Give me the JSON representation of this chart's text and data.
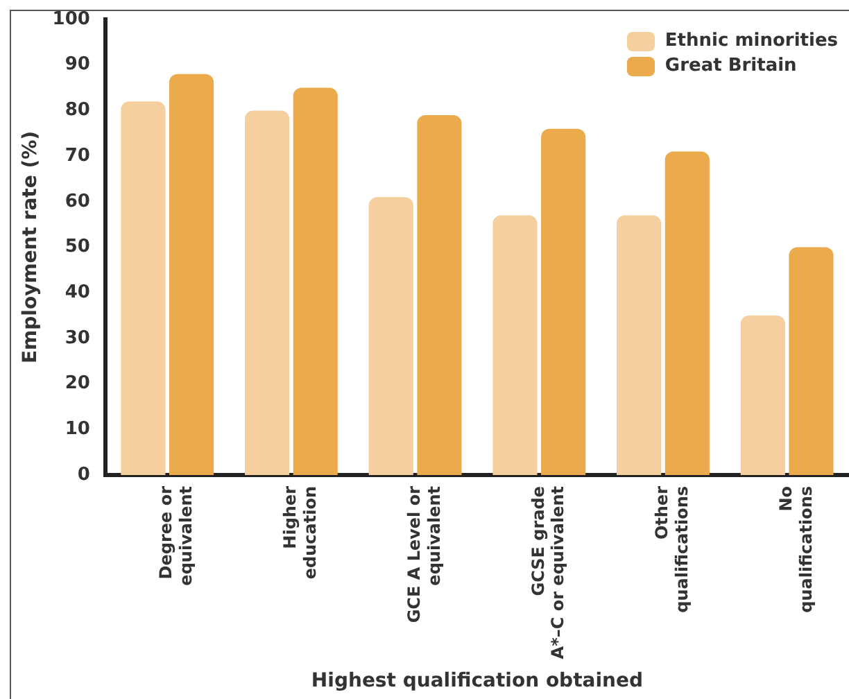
{
  "chart_data": {
    "type": "bar",
    "xlabel": "Highest qualification obtained",
    "ylabel": "Employment rate (%)",
    "categories": [
      "Degree or\nequivalent",
      "Higher\neducation",
      "GCE A Level or\nequivalent",
      "GCSE grade\nA*–C or equivalent",
      "Other\nqualifications",
      "No\nqualifications"
    ],
    "series": [
      {
        "name": "Ethnic minorities",
        "color": "#f5cf9d",
        "values": [
          82,
          80,
          61,
          57,
          57,
          35
        ]
      },
      {
        "name": "Great Britain",
        "color": "#ebaa4b",
        "values": [
          88,
          85,
          79,
          76,
          71,
          50
        ]
      }
    ],
    "ylim": [
      0,
      100
    ],
    "yticks": [
      0,
      10,
      20,
      30,
      40,
      50,
      60,
      70,
      80,
      90,
      100
    ],
    "grid": false,
    "legend": "top right"
  }
}
